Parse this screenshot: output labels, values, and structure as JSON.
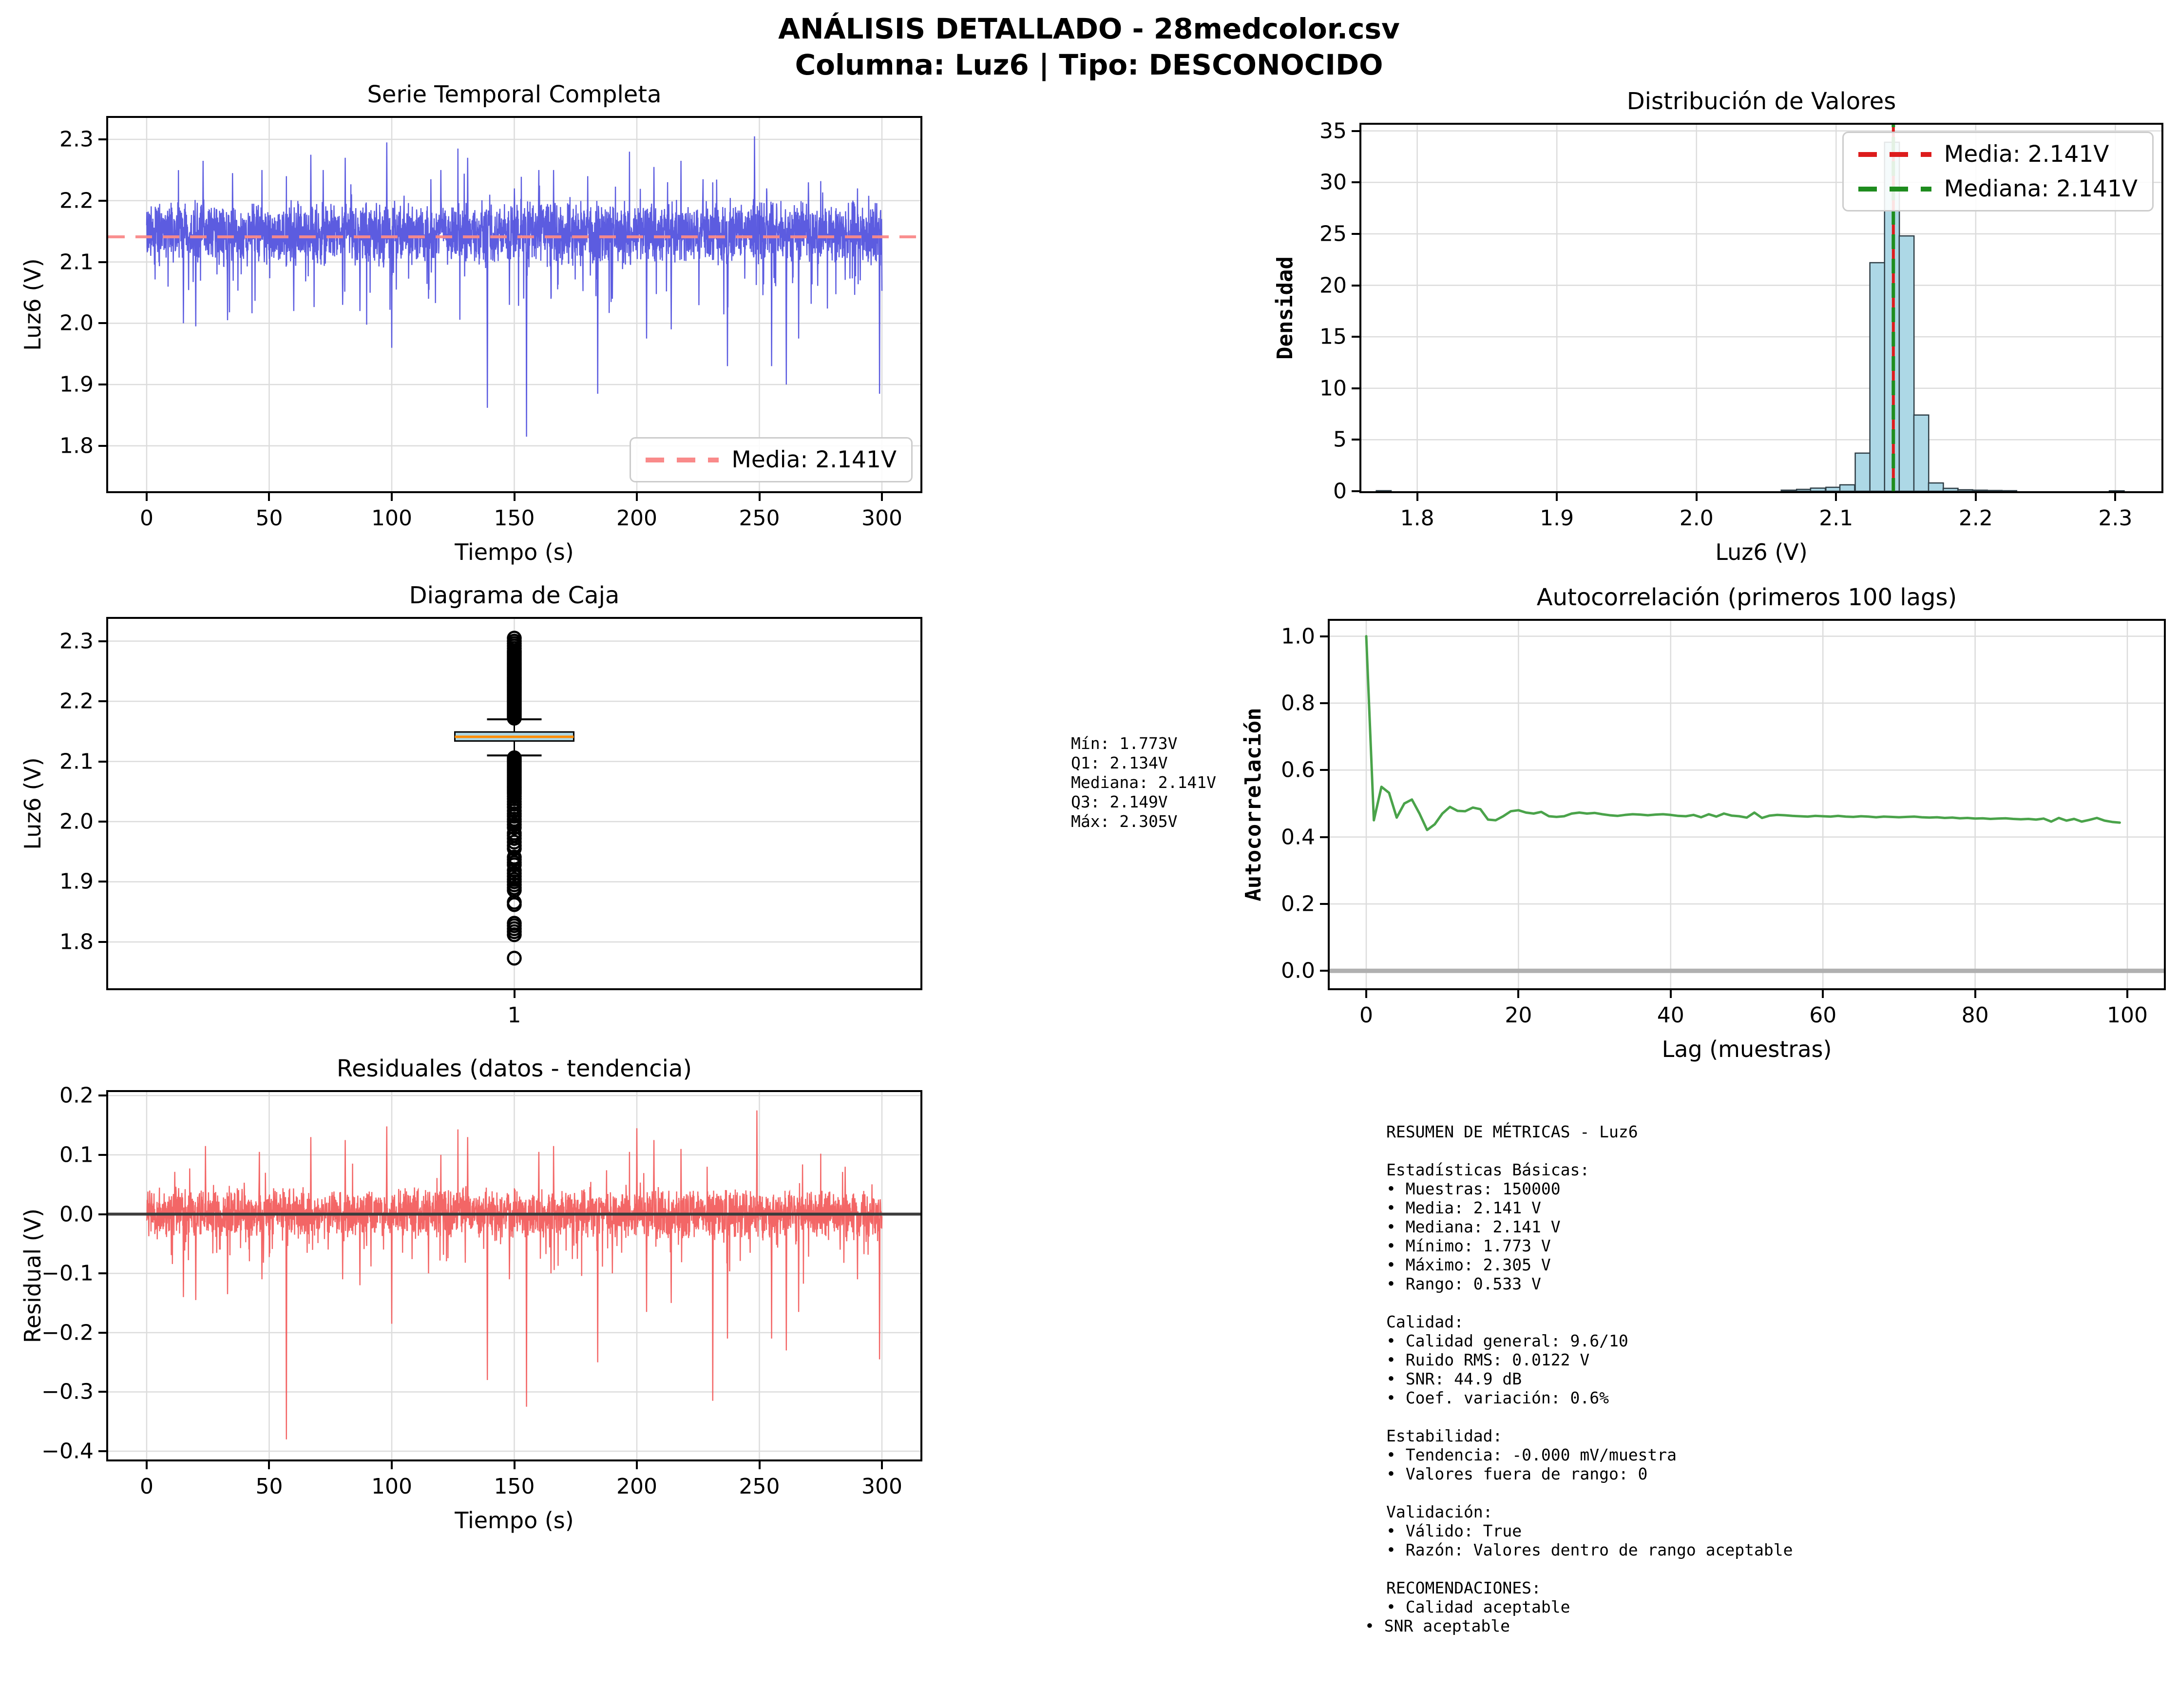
{
  "header": {
    "title_line1": "ANÁLISIS DETALLADO - 28medcolor.csv",
    "title_line2": "Columna: Luz6 | Tipo: DESCONOCIDO"
  },
  "stats_box": {
    "lines": [
      "Mín: 1.773V",
      "Q1: 2.134V",
      "Mediana: 2.141V",
      "Q3: 2.149V",
      "Máx: 2.305V"
    ]
  },
  "summary": {
    "lines": [
      "RESUMEN DE MÉTRICAS - Luz6",
      "",
      "Estadísticas Básicas:",
      "• Muestras: 150000",
      "• Media: 2.141 V",
      "• Mediana: 2.141 V",
      "• Mínimo: 1.773 V",
      "• Máximo: 2.305 V",
      "• Rango: 0.533 V",
      "",
      "Calidad:",
      "• Calidad general: 9.6/10",
      "• Ruido RMS: 0.0122 V",
      "• SNR: 44.9 dB",
      "• Coef. variación: 0.6%",
      "",
      "Estabilidad:",
      "• Tendencia: -0.000 mV/muestra",
      "• Valores fuera de rango: 0",
      "",
      "Validación:",
      "• Válido: True",
      "• Razón: Valores dentro de rango aceptable",
      "",
      "RECOMENDACIONES:",
      "• Calidad aceptable",
      "• SNR aceptable"
    ],
    "outdent_last_line": true
  },
  "chart_data": [
    {
      "id": "ts",
      "type": "line",
      "title": "Serie Temporal Completa",
      "xlabel": "Tiempo (s)",
      "ylabel": "Luz6 (V)",
      "xlim": [
        -15.7,
        315.7
      ],
      "ylim": [
        1.726,
        2.335
      ],
      "xticks": [
        [
          0,
          "0"
        ],
        [
          50,
          "50"
        ],
        [
          100,
          "100"
        ],
        [
          150,
          "150"
        ],
        [
          200,
          "200"
        ],
        [
          250,
          "250"
        ],
        [
          300,
          "300"
        ]
      ],
      "yticks": [
        [
          1.8,
          "1.8"
        ],
        [
          1.9,
          "1.9"
        ],
        [
          2.0,
          "2.0"
        ],
        [
          2.1,
          "2.1"
        ],
        [
          2.2,
          "2.2"
        ],
        [
          2.3,
          "2.3"
        ]
      ],
      "color": "#4545dc",
      "line_opacity": 0.88,
      "noise": {
        "seed": 20240,
        "n": 3400,
        "x0": 0,
        "x1": 300,
        "mean": 2.147,
        "amp": 0.057,
        "dip_p": 0.045,
        "dip_amp": 0.075,
        "up_p": 0.02,
        "up_amp": 0.045
      },
      "down_spikes": [
        [
          15,
          2.0
        ],
        [
          20,
          1.995
        ],
        [
          33,
          2.005
        ],
        [
          47,
          2.03
        ],
        [
          57,
          1.773
        ],
        [
          60,
          2.02
        ],
        [
          80,
          2.03
        ],
        [
          87,
          2.02
        ],
        [
          100,
          1.96
        ],
        [
          115,
          2.04
        ],
        [
          127,
          1.9
        ],
        [
          139,
          1.862
        ],
        [
          148,
          2.03
        ],
        [
          155,
          1.815
        ],
        [
          165,
          2.04
        ],
        [
          184,
          1.885
        ],
        [
          190,
          2.04
        ],
        [
          197,
          1.88
        ],
        [
          204,
          1.975
        ],
        [
          214,
          1.99
        ],
        [
          231,
          1.825
        ],
        [
          237,
          1.93
        ],
        [
          255,
          1.93
        ],
        [
          261,
          1.9
        ],
        [
          266,
          1.975
        ],
        [
          275,
          1.825
        ],
        [
          290,
          2.03
        ],
        [
          299,
          1.885
        ]
      ],
      "up_spikes": [
        [
          23,
          2.265
        ],
        [
          35,
          2.245
        ],
        [
          47,
          2.25
        ],
        [
          57,
          2.24
        ],
        [
          67,
          2.275
        ],
        [
          72,
          2.25
        ],
        [
          81,
          2.27
        ],
        [
          98,
          2.295
        ],
        [
          116,
          2.235
        ],
        [
          120,
          2.25
        ],
        [
          127,
          2.285
        ],
        [
          131,
          2.27
        ],
        [
          150,
          2.22
        ],
        [
          160,
          2.25
        ],
        [
          166,
          2.25
        ],
        [
          180,
          2.24
        ],
        [
          197,
          2.28
        ],
        [
          207,
          2.255
        ],
        [
          218,
          2.265
        ],
        [
          227,
          2.235
        ],
        [
          231,
          2.23
        ],
        [
          248,
          2.305
        ],
        [
          253,
          2.22
        ],
        [
          270,
          2.23
        ],
        [
          275,
          2.232
        ],
        [
          290,
          2.22
        ]
      ],
      "mean_line": {
        "value": 2.141,
        "color": "#f98a8a"
      },
      "legend": {
        "position": "bottom-right",
        "items": [
          {
            "label": "Media: 2.141V",
            "color": "#f98a8a",
            "dashed": true
          }
        ]
      }
    },
    {
      "id": "hist",
      "type": "bar",
      "title": "Distribución de Valores",
      "xlabel": "Luz6 (V)",
      "ylabel": "Densidad",
      "ylabel_mono_bold": true,
      "xlim": [
        1.76,
        2.333
      ],
      "ylim": [
        0,
        35.6
      ],
      "xticks": [
        [
          1.8,
          "1.8"
        ],
        [
          1.9,
          "1.9"
        ],
        [
          2.0,
          "2.0"
        ],
        [
          2.1,
          "2.1"
        ],
        [
          2.2,
          "2.2"
        ],
        [
          2.3,
          "2.3"
        ]
      ],
      "yticks": [
        [
          0,
          "0"
        ],
        [
          5,
          "5"
        ],
        [
          10,
          "10"
        ],
        [
          15,
          "15"
        ],
        [
          20,
          "20"
        ],
        [
          25,
          "25"
        ],
        [
          30,
          "30"
        ],
        [
          35,
          "35"
        ]
      ],
      "bar_fill": "#add8e6",
      "bar_edge": "#2f3e46",
      "bin_width": 0.0106,
      "bins": [
        [
          1.776,
          0.05
        ],
        [
          2.066,
          0.1
        ],
        [
          2.077,
          0.18
        ],
        [
          2.087,
          0.3
        ],
        [
          2.098,
          0.38
        ],
        [
          2.108,
          0.62
        ],
        [
          2.119,
          3.7
        ],
        [
          2.1295,
          22.2
        ],
        [
          2.14,
          33.9
        ],
        [
          2.1505,
          24.8
        ],
        [
          2.161,
          7.4
        ],
        [
          2.1715,
          0.8
        ],
        [
          2.182,
          0.28
        ],
        [
          2.1925,
          0.14
        ],
        [
          2.203,
          0.1
        ],
        [
          2.2135,
          0.07
        ],
        [
          2.224,
          0.05
        ],
        [
          2.301,
          0.04
        ]
      ],
      "vlines": [
        {
          "value": 2.141,
          "color": "#dd1c1c",
          "label": "Media: 2.141V"
        },
        {
          "value": 2.141,
          "color": "#1e8c1e",
          "label": "Mediana: 2.141V"
        }
      ],
      "legend": {
        "position": "top-right",
        "items": [
          {
            "label": "Media: 2.141V",
            "color": "#dd1c1c",
            "dashed": true
          },
          {
            "label": "Mediana: 2.141V",
            "color": "#1e8c1e",
            "dashed": true
          }
        ]
      }
    },
    {
      "id": "box",
      "type": "box",
      "title": "Diagrama de Caja",
      "xlabel": "",
      "ylabel": "Luz6 (V)",
      "xlim": [
        0.5,
        1.5
      ],
      "ylim": [
        1.723,
        2.337
      ],
      "xticks": [
        [
          1,
          "1"
        ]
      ],
      "yticks": [
        [
          1.8,
          "1.8"
        ],
        [
          1.9,
          "1.9"
        ],
        [
          2.0,
          "2.0"
        ],
        [
          2.1,
          "2.1"
        ],
        [
          2.2,
          "2.2"
        ],
        [
          2.3,
          "2.3"
        ]
      ],
      "box": {
        "q1": 2.134,
        "median": 2.141,
        "q3": 2.149,
        "whisker_low": 2.11,
        "whisker_high": 2.17,
        "fill": "#add8e6",
        "median_color": "#ff8c00"
      },
      "outliers_above_dense": [
        2.172,
        2.285,
        0.002
      ],
      "outliers_above": [
        2.288,
        2.292,
        2.296,
        2.3,
        2.305
      ],
      "outliers_below": [
        1.773,
        1.812,
        1.817,
        1.822,
        1.827,
        1.831,
        1.862,
        1.866,
        1.886,
        1.89,
        1.895,
        1.9,
        1.904,
        1.909,
        1.914,
        1.919,
        1.928,
        1.932,
        1.937,
        1.941,
        1.955,
        1.96,
        1.966,
        1.972,
        1.977,
        1.981,
        1.99,
        1.995,
        2.0,
        2.004,
        2.009,
        2.013,
        2.018,
        2.024,
        2.029,
        2.033,
        2.038,
        2.042
      ],
      "outliers_below_dense": [
        2.046,
        2.108,
        0.0025
      ]
    },
    {
      "id": "acf",
      "type": "line_values",
      "title": "Autocorrelación (primeros 100 lags)",
      "xlabel": "Lag (muestras)",
      "ylabel": "Autocorrelación",
      "ylabel_mono_bold": true,
      "xlim": [
        -4.8,
        104.8
      ],
      "ylim": [
        -0.052,
        1.046
      ],
      "xticks": [
        [
          0,
          "0"
        ],
        [
          20,
          "20"
        ],
        [
          40,
          "40"
        ],
        [
          60,
          "60"
        ],
        [
          80,
          "80"
        ],
        [
          100,
          "100"
        ]
      ],
      "yticks": [
        [
          0.0,
          "0.0"
        ],
        [
          0.2,
          "0.2"
        ],
        [
          0.4,
          "0.4"
        ],
        [
          0.6,
          "0.6"
        ],
        [
          0.8,
          "0.8"
        ],
        [
          1.0,
          "1.0"
        ]
      ],
      "color": "#4aa34a",
      "hline": {
        "value": 0,
        "color": "#b0b0b0",
        "width": 9
      },
      "values": [
        1.0,
        0.45,
        0.55,
        0.532,
        0.458,
        0.5,
        0.512,
        0.47,
        0.421,
        0.438,
        0.47,
        0.49,
        0.478,
        0.477,
        0.488,
        0.483,
        0.452,
        0.45,
        0.462,
        0.477,
        0.48,
        0.473,
        0.47,
        0.475,
        0.462,
        0.46,
        0.462,
        0.47,
        0.473,
        0.47,
        0.472,
        0.468,
        0.465,
        0.463,
        0.466,
        0.468,
        0.467,
        0.465,
        0.467,
        0.468,
        0.466,
        0.463,
        0.462,
        0.466,
        0.459,
        0.468,
        0.461,
        0.47,
        0.464,
        0.462,
        0.458,
        0.473,
        0.457,
        0.464,
        0.466,
        0.465,
        0.463,
        0.462,
        0.461,
        0.463,
        0.462,
        0.461,
        0.463,
        0.461,
        0.46,
        0.462,
        0.461,
        0.459,
        0.461,
        0.46,
        0.459,
        0.46,
        0.461,
        0.459,
        0.458,
        0.459,
        0.457,
        0.458,
        0.456,
        0.457,
        0.455,
        0.456,
        0.454,
        0.455,
        0.456,
        0.454,
        0.453,
        0.454,
        0.452,
        0.455,
        0.446,
        0.457,
        0.449,
        0.454,
        0.446,
        0.451,
        0.457,
        0.449,
        0.445,
        0.443
      ]
    },
    {
      "id": "res",
      "type": "line",
      "title": "Residuales (datos - tendencia)",
      "xlabel": "Tiempo (s)",
      "ylabel": "Residual (V)",
      "xlim": [
        -15.7,
        315.7
      ],
      "ylim": [
        -0.414,
        0.206
      ],
      "xticks": [
        [
          0,
          "0"
        ],
        [
          50,
          "50"
        ],
        [
          100,
          "100"
        ],
        [
          150,
          "150"
        ],
        [
          200,
          "200"
        ],
        [
          250,
          "250"
        ],
        [
          300,
          "300"
        ]
      ],
      "yticks": [
        [
          -0.4,
          "−0.4"
        ],
        [
          -0.3,
          "−0.3"
        ],
        [
          -0.2,
          "−0.2"
        ],
        [
          -0.1,
          "−0.1"
        ],
        [
          0.0,
          "0.0"
        ],
        [
          0.1,
          "0.1"
        ],
        [
          0.2,
          "0.2"
        ]
      ],
      "color": "#f25555",
      "line_opacity": 0.9,
      "noise": {
        "seed": 777,
        "n": 3400,
        "x0": 0,
        "x1": 300,
        "mean": 0.002,
        "amp": 0.046,
        "dip_p": 0.06,
        "dip_amp": 0.05,
        "up_p": 0.02,
        "up_amp": 0.035
      },
      "down_spikes": [
        [
          15,
          -0.14
        ],
        [
          20,
          -0.145
        ],
        [
          33,
          -0.135
        ],
        [
          47,
          -0.11
        ],
        [
          57,
          -0.38
        ],
        [
          80,
          -0.11
        ],
        [
          87,
          -0.12
        ],
        [
          100,
          -0.185
        ],
        [
          115,
          -0.1
        ],
        [
          127,
          -0.245
        ],
        [
          139,
          -0.28
        ],
        [
          148,
          -0.11
        ],
        [
          155,
          -0.325
        ],
        [
          165,
          -0.1
        ],
        [
          184,
          -0.25
        ],
        [
          190,
          -0.1
        ],
        [
          197,
          -0.26
        ],
        [
          204,
          -0.165
        ],
        [
          214,
          -0.15
        ],
        [
          231,
          -0.315
        ],
        [
          237,
          -0.21
        ],
        [
          255,
          -0.21
        ],
        [
          261,
          -0.23
        ],
        [
          266,
          -0.165
        ],
        [
          275,
          -0.3
        ],
        [
          290,
          -0.11
        ],
        [
          299,
          -0.245
        ]
      ],
      "up_spikes": [
        [
          24,
          0.115
        ],
        [
          46,
          0.105
        ],
        [
          67,
          0.13
        ],
        [
          81,
          0.125
        ],
        [
          98,
          0.148
        ],
        [
          120,
          0.1
        ],
        [
          127,
          0.143
        ],
        [
          131,
          0.13
        ],
        [
          160,
          0.105
        ],
        [
          166,
          0.115
        ],
        [
          197,
          0.105
        ],
        [
          200,
          0.145
        ],
        [
          207,
          0.125
        ],
        [
          218,
          0.11
        ],
        [
          249,
          0.175
        ],
        [
          275,
          0.102
        ],
        [
          285,
          0.08
        ]
      ],
      "hline": {
        "value": 0,
        "color": "#3c3c3c",
        "width": 6
      }
    }
  ]
}
